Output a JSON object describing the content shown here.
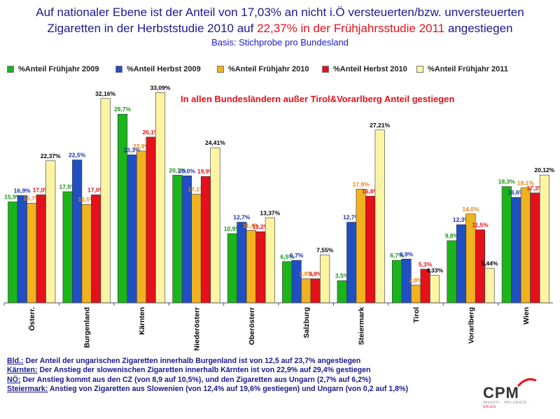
{
  "title": {
    "line1": "Auf nationaler Ebene ist der Anteil von 17,03% an nicht i.Ö versteuerten/bzw. unversteuerten",
    "line2_prefix": "Zigaretten in der Herbststudie 2010 auf ",
    "line2_highlight": "22,37% in der Frühjahrsstudie 2011",
    "line2_suffix": " angestiegen",
    "subtitle": "Basis: Stichprobe pro Bundesland"
  },
  "annotation": "In allen Bundesländern außer Tirol&Vorarlberg Anteil gestiegen",
  "colors": {
    "green": "#1bb51b",
    "blue": "#1f4fc2",
    "orange": "#f0b21e",
    "red": "#e4101a",
    "cream": "#fbf5a3",
    "label_green": "#1a8f1a",
    "label_blue": "#1a2fb0",
    "label_orange": "#e8850c",
    "label_red": "#e4101a",
    "label_cream": "#000000"
  },
  "chart_data": {
    "type": "bar",
    "categories": [
      "Österr.",
      "Burgenland",
      "Kärnten",
      "Niederösterr",
      "Oberösterr",
      "Salzburg",
      "Steiermark",
      "Tirol",
      "Vorarlberg",
      "Wien"
    ],
    "series": [
      {
        "name": "%Anteil Frühjahr 2009",
        "color": "green",
        "values": [
          15.9,
          17.5,
          29.7,
          20.1,
          10.9,
          6.5,
          3.5,
          6.7,
          9.8,
          18.3
        ],
        "labels": [
          "15,9%",
          "17,5%",
          "29,7%",
          "20,1%",
          "10,9%",
          "6,5%",
          "3,5%",
          "6,7%",
          "9,8%",
          "18,3%"
        ]
      },
      {
        "name": "%Anteil Herbst 2009",
        "color": "blue",
        "values": [
          16.9,
          22.5,
          23.3,
          20.0,
          12.7,
          6.7,
          12.7,
          6.9,
          12.3,
          16.6
        ],
        "labels": [
          "16,9%",
          "22,5%",
          "23,3%",
          "20,0%",
          "12,7%",
          "6,7%",
          "12,7%",
          "6,9%",
          "12,3%",
          "16,6%"
        ]
      },
      {
        "name": "%Anteil Frühjahr 2010",
        "color": "orange",
        "values": [
          15.7,
          15.5,
          23.9,
          17.1,
          11.4,
          3.8,
          17.9,
          2.8,
          14.0,
          18.1
        ],
        "labels": [
          "15,7%",
          "15,5%",
          "23,9%",
          "17,1%",
          "11,4%",
          "3,8%",
          "17,9%",
          "2,8%",
          "14,0%",
          "18,1%"
        ]
      },
      {
        "name": "%Anteil Herbst 2010",
        "color": "red",
        "values": [
          17.0,
          17.0,
          26.1,
          19.9,
          11.2,
          3.8,
          16.8,
          5.3,
          11.5,
          17.3
        ],
        "labels": [
          "17,0%",
          "17,0%",
          "26,1%",
          "19,9%",
          "11,2%",
          "3,8%",
          "16,8%",
          "5,3%",
          "11,5%",
          "17,3%"
        ]
      },
      {
        "name": "%Anteil Frühjahr 2011",
        "color": "cream",
        "values": [
          22.37,
          32.16,
          33.09,
          24.41,
          13.37,
          7.55,
          27.21,
          4.33,
          5.44,
          20.12
        ],
        "labels": [
          "22,37%",
          "32,16%",
          "33,09%",
          "24,41%",
          "13,37%",
          "7,55%",
          "27,21%",
          "4,33%",
          "5,44%",
          "20,12%"
        ]
      }
    ],
    "ylim": [
      0,
      35
    ],
    "legend": "top",
    "grid": false
  },
  "notes": [
    {
      "key": "Bld.:",
      "text": " Der Anteil der ungarischen Zigaretten innerhalb Burgenland ist von 12,5 auf 23,7% angestiegen"
    },
    {
      "key": "Kärnten:",
      "text": " Der Anstieg der slowenischen Zigaretten innerhalb Kärnten ist von 22,9% auf 29,4% gestiegen"
    },
    {
      "key": "NÖ:",
      "text": " Der Anstieg kommt aus den CZ (von 8,9 auf 10,5%), und den Zigaretten aus Ungarn (2,7% auf 6,2%)"
    },
    {
      "key": "Steiermark:",
      "text": " Anstieg von Zigaretten aus Slowenien (von 12,4% auf 19,6% gestiegen) und Ungarn (von 0,2 auf 1,8%)"
    }
  ],
  "logo": {
    "name": "CPM",
    "tag_part1": "INSIGHT · INFLUENCE · ",
    "tag_part2": "SALES"
  }
}
